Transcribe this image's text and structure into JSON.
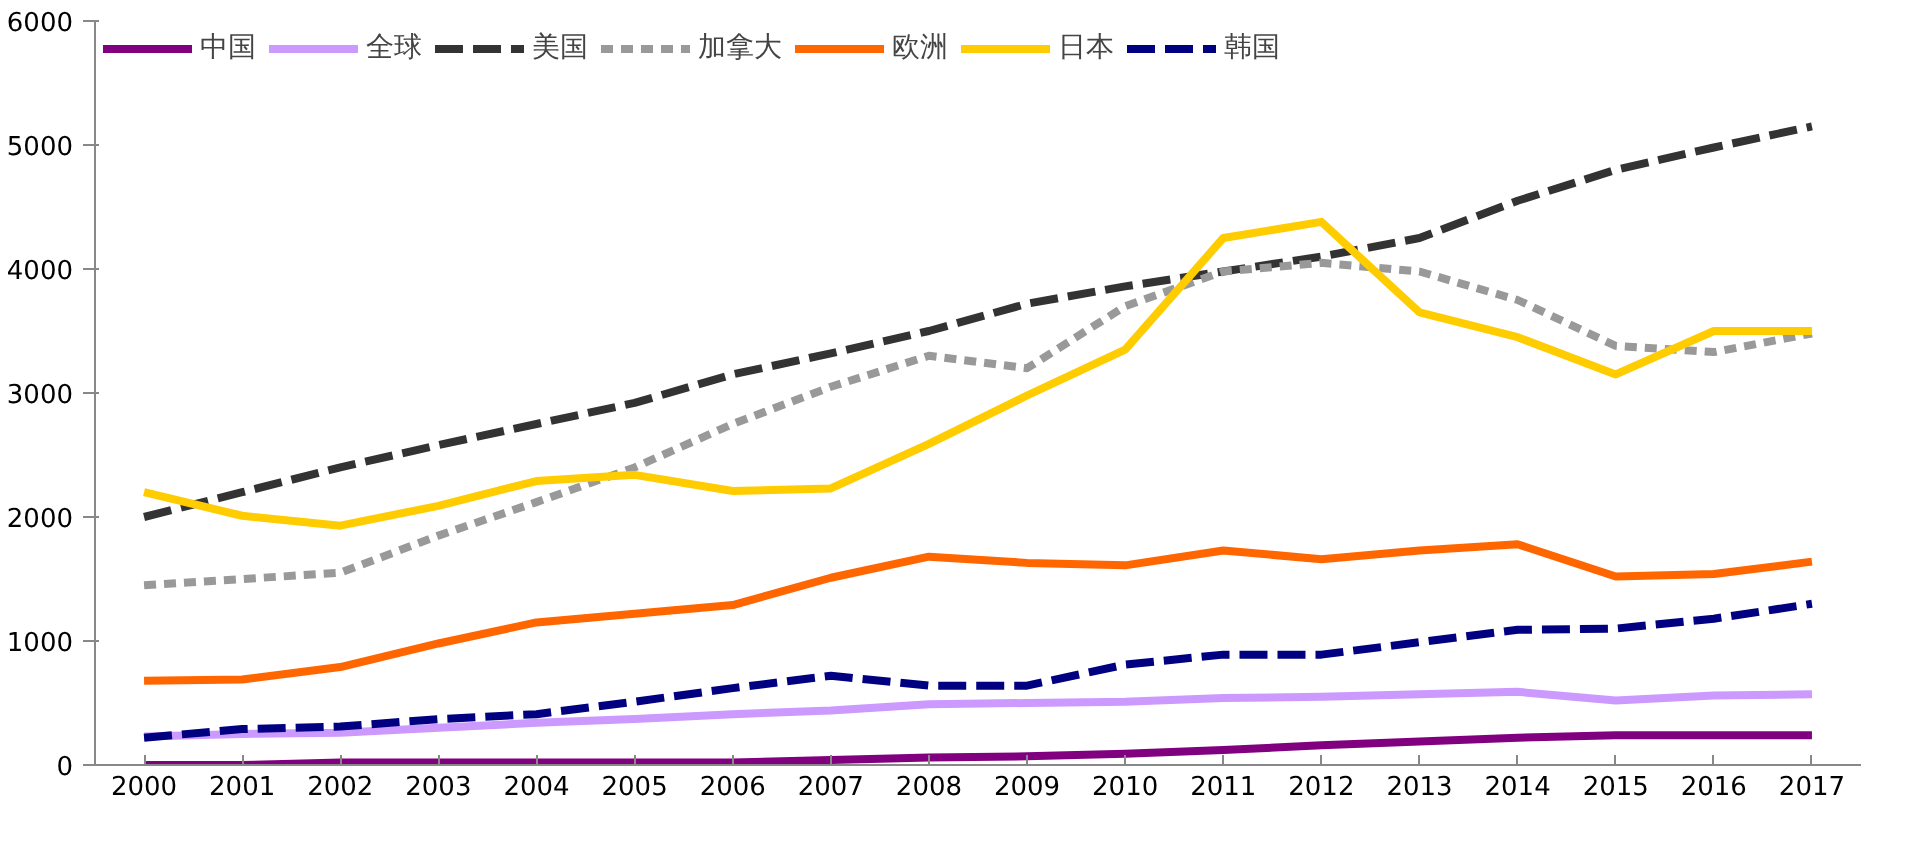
{
  "chart_data": {
    "type": "line",
    "categories": [
      "2000",
      "2001",
      "2002",
      "2003",
      "2004",
      "2005",
      "2006",
      "2007",
      "2008",
      "2009",
      "2010",
      "2011",
      "2012",
      "2013",
      "2014",
      "2015",
      "2016",
      "2017"
    ],
    "ylim": [
      0,
      6000
    ],
    "yticks": [
      0,
      1000,
      2000,
      3000,
      4000,
      5000,
      6000
    ],
    "grid": false,
    "legend": "top left",
    "marker": "none",
    "series": [
      {
        "name": "中国",
        "color": "#800080",
        "line_style": "solid",
        "values": [
          0,
          0,
          20,
          20,
          20,
          20,
          20,
          40,
          60,
          70,
          90,
          120,
          160,
          190,
          220,
          240,
          240,
          240
        ]
      },
      {
        "name": "全球",
        "color": "#cc99ff",
        "line_style": "solid",
        "values": [
          230,
          250,
          260,
          300,
          340,
          370,
          410,
          440,
          490,
          500,
          510,
          540,
          550,
          570,
          590,
          520,
          560,
          570
        ]
      },
      {
        "name": "美国",
        "color": "#333333",
        "line_style": "dashed",
        "values": [
          2000,
          2200,
          2400,
          2580,
          2750,
          2920,
          3150,
          3320,
          3500,
          3720,
          3860,
          3980,
          4100,
          4250,
          4550,
          4800,
          4980,
          5150
        ]
      },
      {
        "name": "加拿大",
        "color": "#999999",
        "line_style": "dotted",
        "values": [
          1450,
          1500,
          1550,
          1850,
          2120,
          2400,
          2750,
          3050,
          3300,
          3200,
          3700,
          3980,
          4050,
          3980,
          3750,
          3380,
          3330,
          3480
        ]
      },
      {
        "name": "欧洲",
        "color": "#ff6600",
        "line_style": "solid",
        "values": [
          680,
          690,
          790,
          980,
          1150,
          1220,
          1290,
          1510,
          1680,
          1630,
          1610,
          1730,
          1660,
          1730,
          1780,
          1520,
          1540,
          1640
        ]
      },
      {
        "name": "日本",
        "color": "#ffcc00",
        "line_style": "solid",
        "values": [
          2200,
          2010,
          1930,
          2090,
          2290,
          2340,
          2210,
          2230,
          2590,
          2980,
          3350,
          4250,
          4380,
          3650,
          3450,
          3150,
          3500,
          3500
        ]
      },
      {
        "name": "韩国",
        "color": "#000080",
        "line_style": "dashed",
        "values": [
          220,
          290,
          310,
          370,
          410,
          510,
          620,
          720,
          640,
          640,
          810,
          890,
          890,
          990,
          1090,
          1100,
          1180,
          1300
        ]
      }
    ]
  }
}
